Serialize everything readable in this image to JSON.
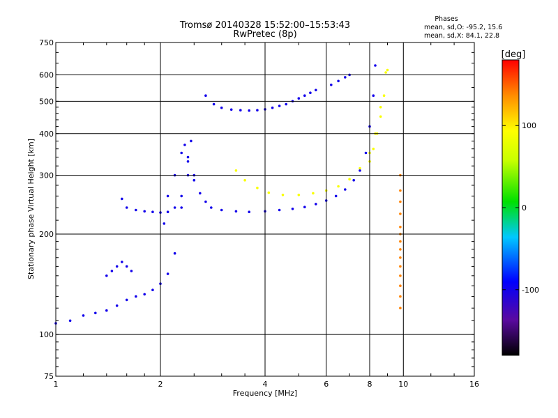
{
  "chart_data": {
    "type": "scatter",
    "title": "Tromsø 20140328 15:52:00–15:53:43",
    "subtitle": "RwPretec (8p)",
    "xlabel": "Frequency [MHz]",
    "ylabel": "Stationary phase Virtual Height [km]",
    "x_scale": "log",
    "y_scale": "log",
    "xlim": [
      1,
      16
    ],
    "ylim": [
      75,
      750
    ],
    "x_ticks": [
      1,
      2,
      4,
      6,
      8,
      10,
      16
    ],
    "x_tick_labels": [
      "1",
      "2",
      "4",
      "6",
      "8",
      "10",
      "16"
    ],
    "y_ticks": [
      75,
      100,
      200,
      300,
      400,
      500,
      600,
      750
    ],
    "y_tick_labels": [
      "75",
      "100",
      "200",
      "300",
      "400",
      "500",
      "600",
      "750"
    ],
    "grid": true,
    "phase_stats": {
      "title": "Phases",
      "line_o": "mean, sd,O: -95.2, 15.6",
      "line_x": "mean, sd,X:  84.1, 22.8"
    },
    "colorbar": {
      "label": "[deg]",
      "range": [
        -180,
        180
      ],
      "ticks": [
        100,
        0,
        -100
      ],
      "tick_labels": [
        "100",
        "0",
        "-100"
      ]
    },
    "series": [
      {
        "color_phase": -100,
        "traces": [
          {
            "x": [
              1.0,
              1.1,
              1.2,
              1.3,
              1.4,
              1.5,
              1.6,
              1.7,
              1.8,
              1.9,
              2.0,
              2.1,
              2.2,
              2.3,
              2.4,
              2.45
            ],
            "y": [
              108,
              110,
              114,
              116,
              118,
              122,
              127,
              130,
              132,
              136,
              142,
              152,
              175,
              240,
              330,
              380
            ]
          },
          {
            "x": [
              1.55,
              1.6,
              1.7,
              1.8,
              1.9,
              2.0,
              2.1,
              2.2,
              2.3,
              2.4,
              2.5,
              2.6,
              2.7,
              2.8,
              3.0,
              3.3,
              3.6,
              4.0,
              4.4,
              4.8,
              5.2,
              5.6,
              6.0,
              6.4,
              6.8,
              7.2,
              7.5,
              7.8,
              8.0,
              8.2,
              8.3
            ],
            "y": [
              255,
              240,
              236,
              234,
              233,
              232,
              233,
              240,
              260,
              300,
              290,
              265,
              250,
              240,
              236,
              234,
              233,
              234,
              236,
              238,
              241,
              246,
              252,
              260,
              272,
              290,
              310,
              350,
              420,
              520,
              640
            ]
          },
          {
            "x": [
              2.7,
              2.85,
              3.0,
              3.2,
              3.4,
              3.6,
              3.8,
              4.0,
              4.2,
              4.4,
              4.6
            ],
            "y": [
              520,
              490,
              478,
              472,
              470,
              469,
              470,
              473,
              478,
              484,
              490
            ]
          },
          {
            "x": [
              4.8,
              5.0,
              5.2,
              5.4,
              5.6
            ],
            "y": [
              500,
              510,
              520,
              530,
              540
            ]
          },
          {
            "x": [
              6.2,
              6.5,
              6.8,
              7.0
            ],
            "y": [
              560,
              575,
              590,
              600
            ]
          },
          {
            "x": [
              2.05,
              2.1,
              2.2,
              2.3,
              2.35,
              2.4,
              2.5
            ],
            "y": [
              215,
              260,
              300,
              350,
              370,
              340,
              300
            ]
          },
          {
            "x": [
              1.4,
              1.45,
              1.5,
              1.55,
              1.6,
              1.65
            ],
            "y": [
              150,
              155,
              160,
              165,
              160,
              155
            ]
          }
        ]
      },
      {
        "color_phase": 90,
        "traces": [
          {
            "x": [
              3.3,
              3.5,
              3.8,
              4.1,
              4.5,
              5.0,
              5.5,
              6.0,
              6.5,
              7.0,
              7.5,
              8.0,
              8.3,
              8.6,
              8.9
            ],
            "y": [
              310,
              290,
              275,
              266,
              262,
              262,
              265,
              270,
              278,
              292,
              315,
              350,
              400,
              480,
              610
            ]
          },
          {
            "x": [
              8.0,
              8.2,
              8.4,
              8.6,
              8.8,
              9.0
            ],
            "y": [
              330,
              360,
              400,
              450,
              520,
              620
            ]
          }
        ]
      },
      {
        "color_phase": 140,
        "traces": [
          {
            "x": [
              9.8,
              9.8,
              9.8,
              9.8,
              9.8,
              9.8,
              9.8,
              9.8,
              9.8,
              9.8,
              9.8,
              9.8,
              9.8,
              9.8
            ],
            "y": [
              120,
              130,
              140,
              150,
              160,
              170,
              180,
              190,
              200,
              210,
              230,
              250,
              270,
              300
            ]
          }
        ]
      }
    ]
  }
}
